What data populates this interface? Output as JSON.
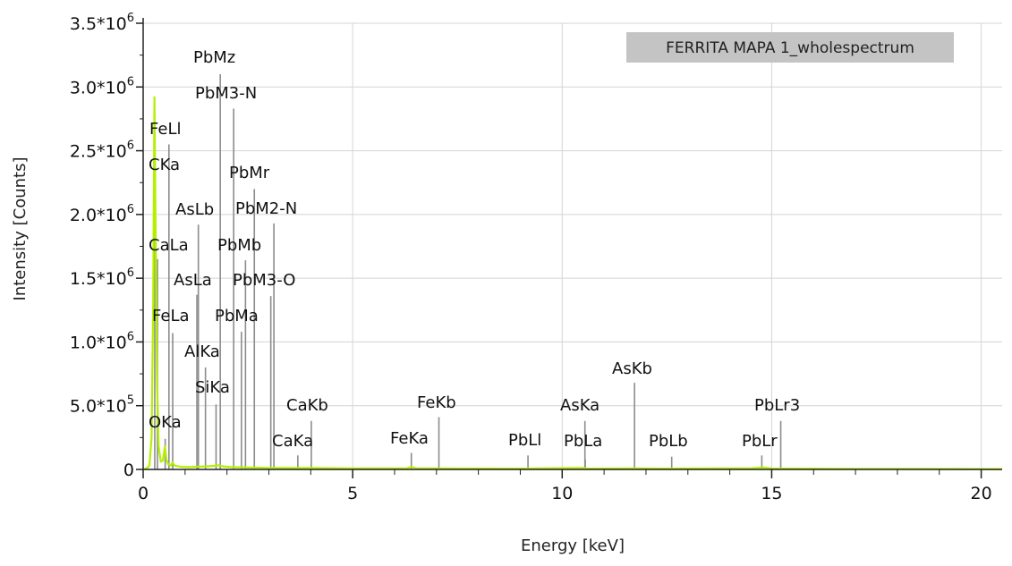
{
  "chart_data": {
    "type": "line",
    "legend": {
      "label": "FERRITA MAPA 1_wholespectrum",
      "placement": "top-right"
    },
    "xlabel": "Energy [keV]",
    "ylabel": "Intensity [Counts]",
    "xlim": [
      0,
      20.5
    ],
    "ylim": [
      0,
      3500000
    ],
    "x_ticks": [
      "0",
      "5",
      "10",
      "15",
      "20"
    ],
    "y_ticks": [
      {
        "value": 0,
        "base": "0",
        "exp": ""
      },
      {
        "value": 500000,
        "base": "5.0*10",
        "exp": "5"
      },
      {
        "value": 1000000,
        "base": "1.0*10",
        "exp": "6"
      },
      {
        "value": 1500000,
        "base": "1.5*10",
        "exp": "6"
      },
      {
        "value": 2000000,
        "base": "2.0*10",
        "exp": "6"
      },
      {
        "value": 2500000,
        "base": "2.5*10",
        "exp": "6"
      },
      {
        "value": 3000000,
        "base": "3.0*10",
        "exp": "6"
      },
      {
        "value": 3500000,
        "base": "3.5*10",
        "exp": "6"
      }
    ],
    "grid": true,
    "spectrum_color": "#b4f000",
    "marker_color": "#8c8c8c",
    "spectrum": [
      [
        0.0,
        0
      ],
      [
        0.05,
        5000
      ],
      [
        0.1,
        12000
      ],
      [
        0.15,
        30000
      ],
      [
        0.2,
        250000
      ],
      [
        0.24,
        1300000
      ],
      [
        0.27,
        2920000
      ],
      [
        0.3,
        1800000
      ],
      [
        0.33,
        700000
      ],
      [
        0.37,
        180000
      ],
      [
        0.42,
        60000
      ],
      [
        0.47,
        70000
      ],
      [
        0.52,
        180000
      ],
      [
        0.55,
        80000
      ],
      [
        0.6,
        40000
      ],
      [
        0.66,
        30000
      ],
      [
        0.7,
        55000
      ],
      [
        0.75,
        30000
      ],
      [
        0.9,
        20000
      ],
      [
        1.1,
        18000
      ],
      [
        1.3,
        22000
      ],
      [
        1.5,
        24000
      ],
      [
        1.7,
        28000
      ],
      [
        1.8,
        32000
      ],
      [
        1.9,
        24000
      ],
      [
        2.1,
        18000
      ],
      [
        2.5,
        15000
      ],
      [
        3.0,
        12000
      ],
      [
        3.7,
        11000
      ],
      [
        4.0,
        12000
      ],
      [
        5.0,
        8000
      ],
      [
        6.3,
        9000
      ],
      [
        6.4,
        20000
      ],
      [
        6.5,
        9000
      ],
      [
        7.5,
        7000
      ],
      [
        9.0,
        6000
      ],
      [
        10.5,
        12000
      ],
      [
        10.6,
        6000
      ],
      [
        11.7,
        8000
      ],
      [
        12.5,
        6000
      ],
      [
        14.5,
        9000
      ],
      [
        14.8,
        15000
      ],
      [
        15.0,
        7000
      ],
      [
        17.0,
        5000
      ],
      [
        20.5,
        3000
      ]
    ],
    "peaks": [
      {
        "label": "OKa",
        "energy": 0.525,
        "height": 240000
      },
      {
        "label": "CKa",
        "energy": 0.277,
        "height": 2350000
      },
      {
        "label": "FeLl",
        "energy": 0.615,
        "height": 2550000
      },
      {
        "label": "CaLa",
        "energy": 0.341,
        "height": 1650000
      },
      {
        "label": "FeLa",
        "energy": 0.705,
        "height": 1070000
      },
      {
        "label": "AlKa",
        "energy": 1.487,
        "height": 800000
      },
      {
        "label": "SiKa",
        "energy": 1.74,
        "height": 510000
      },
      {
        "label": "AsLa",
        "energy": 1.282,
        "height": 1370000
      },
      {
        "label": "AsLb",
        "energy": 1.317,
        "height": 1920000
      },
      {
        "label": "PbMz",
        "energy": 1.84,
        "height": 3100000
      },
      {
        "label": "PbM3-N",
        "energy": 2.16,
        "height": 2830000
      },
      {
        "label": "PbMa",
        "energy": 2.345,
        "height": 1080000
      },
      {
        "label": "PbMb",
        "energy": 2.442,
        "height": 1640000
      },
      {
        "label": "PbMr",
        "energy": 2.653,
        "height": 2200000
      },
      {
        "label": "PbM2-N",
        "energy": 3.12,
        "height": 1930000
      },
      {
        "label": "PbM3-O",
        "energy": 3.046,
        "height": 1360000
      },
      {
        "label": "CaKa",
        "energy": 3.691,
        "height": 110000
      },
      {
        "label": "CaKb",
        "energy": 4.012,
        "height": 380000
      },
      {
        "label": "FeKa",
        "energy": 6.4,
        "height": 130000
      },
      {
        "label": "FeKb",
        "energy": 7.058,
        "height": 410000
      },
      {
        "label": "PbLl",
        "energy": 9.184,
        "height": 110000
      },
      {
        "label": "AsKa",
        "energy": 10.543,
        "height": 380000
      },
      {
        "label": "PbLa",
        "energy": 10.551,
        "height": 80000
      },
      {
        "label": "AsKb",
        "energy": 11.726,
        "height": 680000
      },
      {
        "label": "PbLb",
        "energy": 12.614,
        "height": 100000
      },
      {
        "label": "PbLr",
        "energy": 14.764,
        "height": 110000
      },
      {
        "label": "PbLr3",
        "energy": 15.216,
        "height": 380000
      }
    ]
  }
}
